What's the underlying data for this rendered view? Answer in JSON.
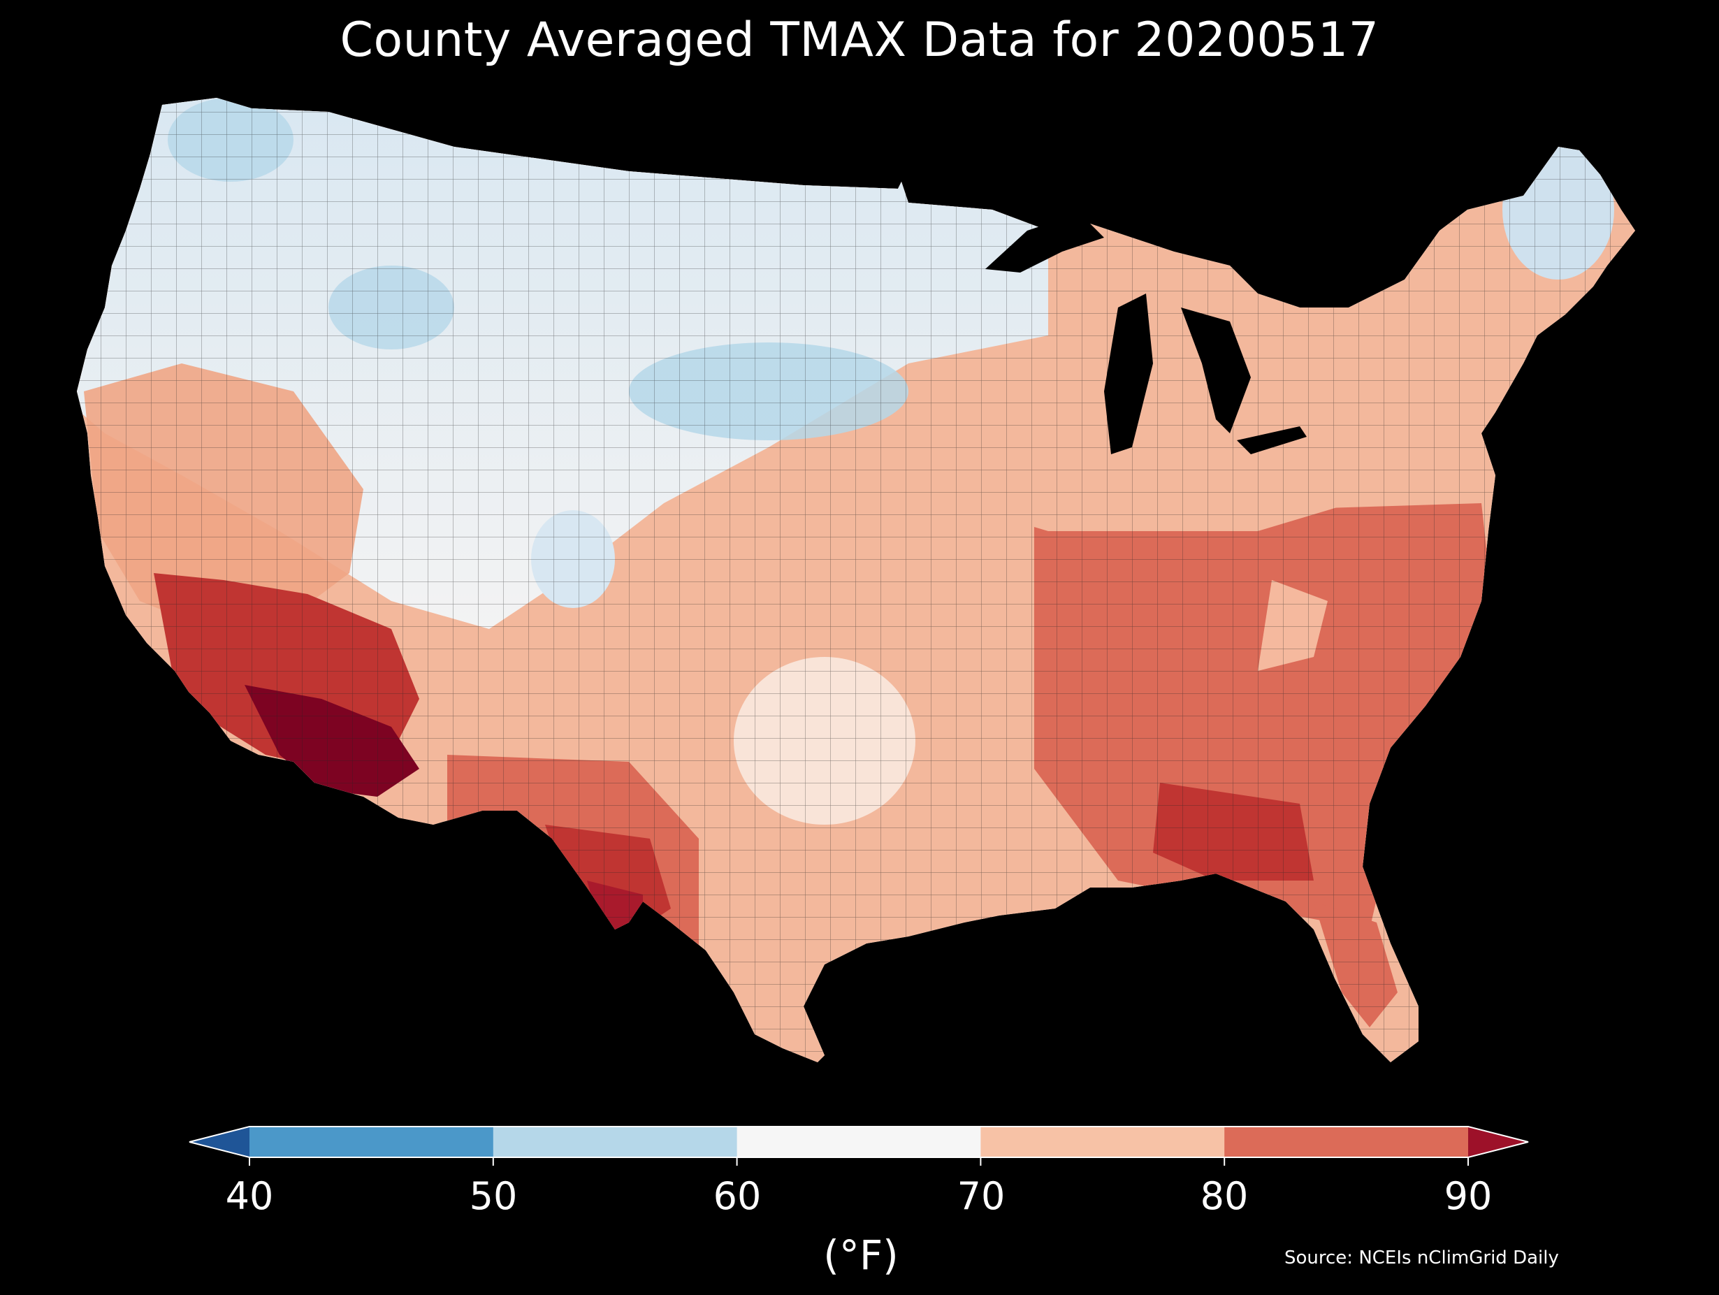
{
  "title": "County Averaged TMAX Data for 20200517",
  "colorbar": {
    "ticks": [
      "40",
      "50",
      "60",
      "70",
      "80",
      "90"
    ],
    "unit": "(°F)",
    "bins": [
      {
        "range": "<40",
        "color": "#1f5597"
      },
      {
        "range": "40-50",
        "color": "#4b98c9"
      },
      {
        "range": "50-60",
        "color": "#b5d7e9"
      },
      {
        "range": "60-70",
        "color": "#f6f6f6"
      },
      {
        "range": "70-80",
        "color": "#f7c2a6"
      },
      {
        "range": "80-90",
        "color": "#dc6b58"
      },
      {
        "range": ">90",
        "color": "#9d1129"
      }
    ],
    "extend": "both"
  },
  "source": "Source: NCEIs nClimGrid Daily",
  "map": {
    "region": "Contiguous United States",
    "variable": "TMAX",
    "colors": {
      "cold_deep": "#b5d7e9",
      "cool": "#d8e7f2",
      "near_white": "#f3f3f3",
      "warm_light": "#f9dccd",
      "warm": "#f1a888",
      "hot": "#dc6b58",
      "very_hot": "#c03532",
      "extreme": "#7d0322"
    }
  }
}
